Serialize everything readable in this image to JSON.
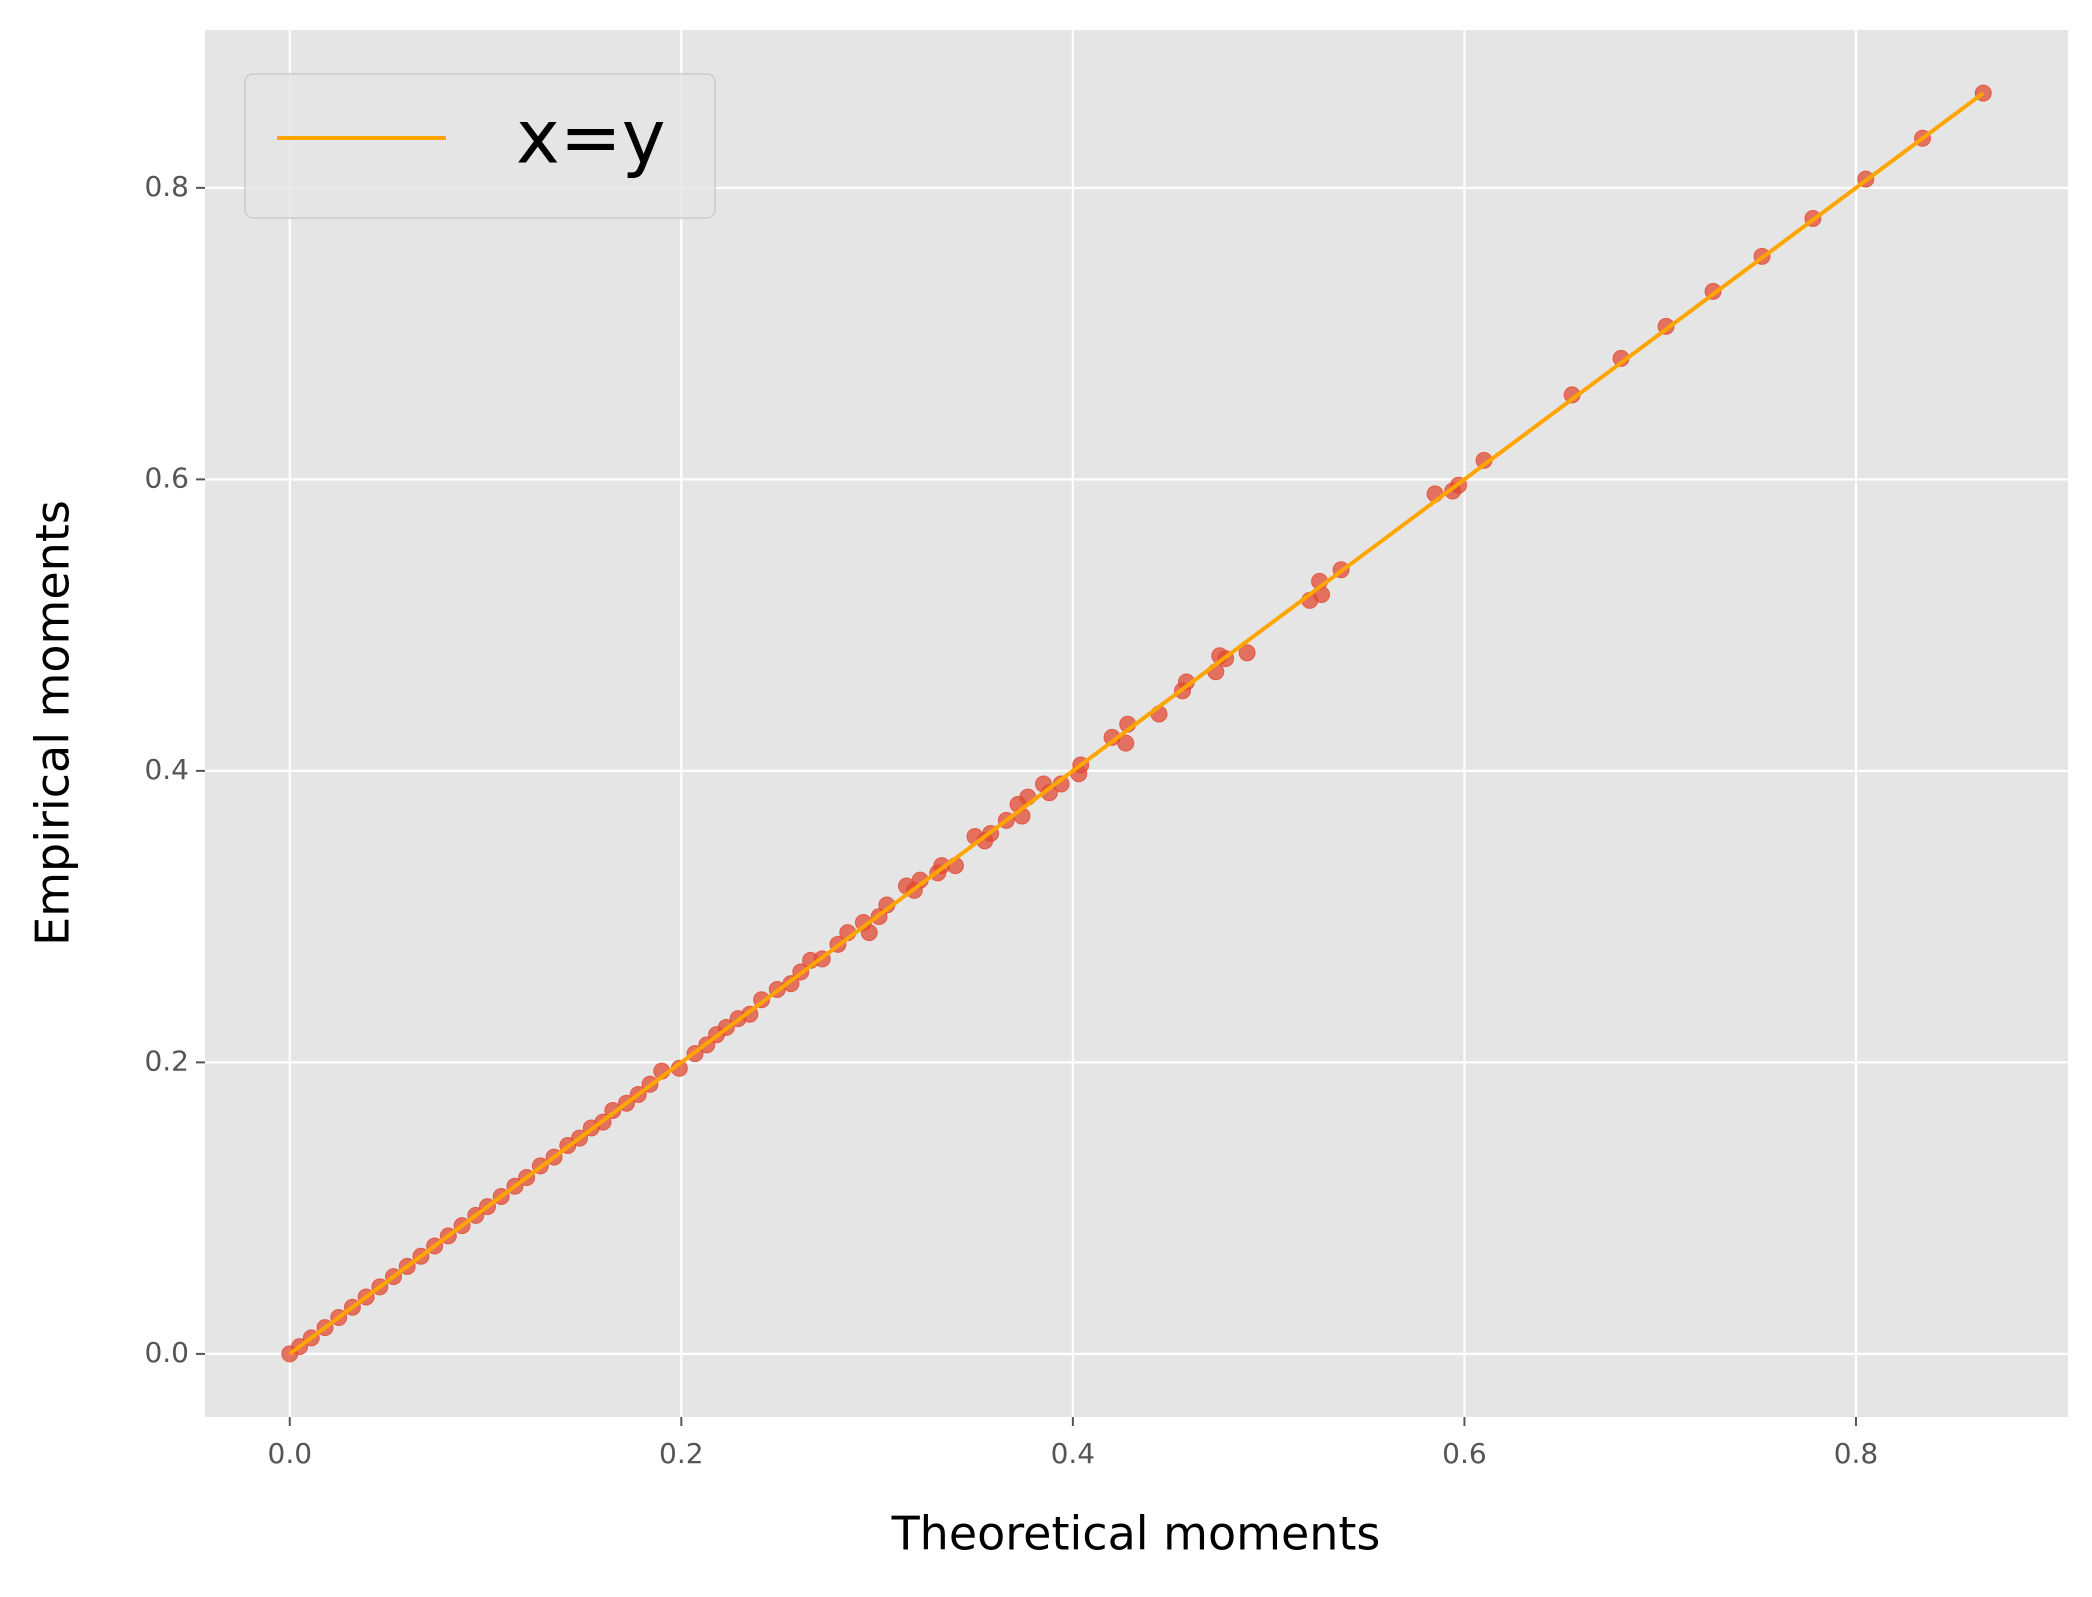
{
  "chart_data": {
    "type": "scatter",
    "xlabel": "Theoretical moments",
    "ylabel": "Empirical moments",
    "xlim": [
      -0.0433,
      0.9083
    ],
    "ylim": [
      -0.0433,
      0.9083
    ],
    "xticks": [
      {
        "value": 0,
        "label": "0.0"
      },
      0.2,
      0.4,
      0.6,
      0.8
    ],
    "yticks": [
      {
        "value": 0,
        "label": "0.0"
      },
      0.2,
      0.4,
      0.6,
      0.8
    ],
    "grid": true,
    "legend": "upper left",
    "series": [
      {
        "type": "scatter",
        "color": "#E24A33",
        "x": [
          0.865,
          0.834,
          0.805,
          0.778,
          0.752,
          0.727,
          0.703,
          0.68,
          0.655,
          0.61,
          0.597,
          0.594,
          0.585,
          0.537,
          0.526,
          0.527,
          0.521,
          0.489,
          0.475,
          0.473,
          0.478,
          0.458,
          0.456,
          0.444,
          0.428,
          0.427,
          0.42,
          0.404,
          0.403,
          0.394,
          0.388,
          0.385,
          0.377,
          0.372,
          0.374,
          0.366,
          0.358,
          0.35,
          0.355,
          0.34,
          0.333,
          0.331,
          0.322,
          0.319,
          0.315,
          0.305,
          0.301,
          0.296,
          0.293,
          0.285,
          0.28,
          0.272,
          0.266,
          0.261,
          0.256,
          0.249,
          0.241,
          0.235,
          0.229,
          0.223,
          0.218,
          0.213,
          0.207,
          0.199,
          0.19,
          0.184,
          0.178,
          0.172,
          0.165,
          0.16,
          0.154,
          0.148,
          0.142,
          0.135,
          0.128,
          0.121,
          0.115,
          0.108,
          0.101,
          0.095,
          0.088,
          0.081,
          0.074,
          0.067,
          0.06,
          0.053,
          0.046,
          0.039,
          0.032,
          0.025,
          0.018,
          0.011,
          0.005,
          0.0
        ],
        "values": [
          0.865,
          0.834,
          0.806,
          0.779,
          0.753,
          0.729,
          0.705,
          0.683,
          0.658,
          0.613,
          0.596,
          0.592,
          0.59,
          0.538,
          0.53,
          0.521,
          0.517,
          0.481,
          0.479,
          0.468,
          0.477,
          0.461,
          0.455,
          0.439,
          0.432,
          0.419,
          0.423,
          0.404,
          0.398,
          0.391,
          0.385,
          0.391,
          0.382,
          0.377,
          0.369,
          0.366,
          0.357,
          0.355,
          0.352,
          0.335,
          0.335,
          0.33,
          0.325,
          0.318,
          0.321,
          0.308,
          0.3,
          0.289,
          0.296,
          0.289,
          0.281,
          0.271,
          0.27,
          0.262,
          0.254,
          0.25,
          0.243,
          0.233,
          0.23,
          0.224,
          0.219,
          0.212,
          0.206,
          0.196,
          0.194,
          0.185,
          0.178,
          0.172,
          0.167,
          0.159,
          0.155,
          0.148,
          0.143,
          0.135,
          0.129,
          0.121,
          0.115,
          0.108,
          0.101,
          0.095,
          0.088,
          0.081,
          0.074,
          0.067,
          0.06,
          0.053,
          0.046,
          0.039,
          0.032,
          0.025,
          0.018,
          0.011,
          0.005,
          0.0
        ]
      },
      {
        "type": "line",
        "name": "x=y",
        "color": "#FFA500",
        "x": [
          0,
          0.865
        ],
        "values": [
          0,
          0.865
        ]
      }
    ]
  }
}
